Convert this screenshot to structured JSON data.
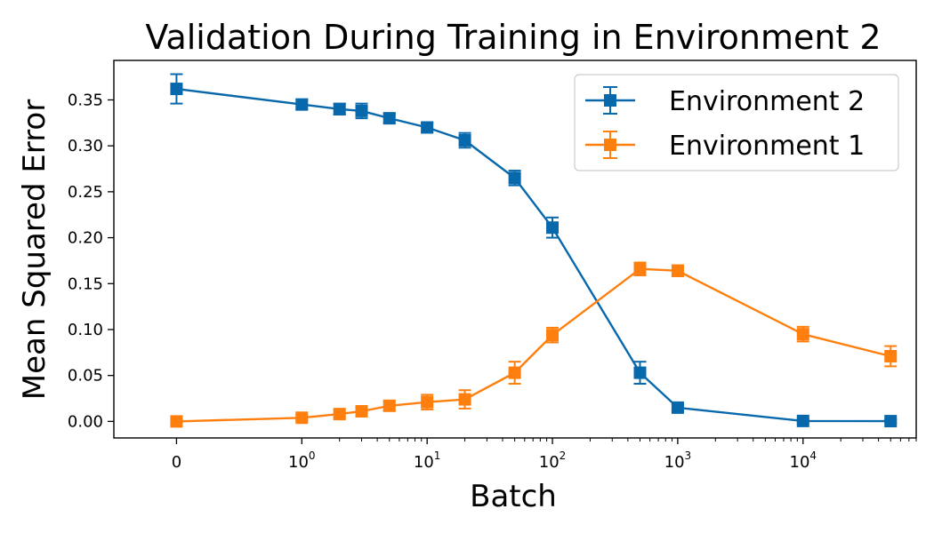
{
  "chart_data": {
    "type": "line",
    "title": "Validation During Training in Environment 2",
    "xlabel": "Batch",
    "ylabel": "Mean Squared Error",
    "xscale": "symlog",
    "xlim": [
      -0.5,
      80000
    ],
    "ylim": [
      -0.018,
      0.393
    ],
    "x": [
      0,
      1,
      2,
      3,
      5,
      10,
      20,
      50,
      100,
      500,
      1000,
      10000,
      50000
    ],
    "x_tick_labels": [
      {
        "value": 0,
        "base": "0",
        "exp": ""
      },
      {
        "value": 1,
        "base": "10",
        "exp": "0"
      },
      {
        "value": 10,
        "base": "10",
        "exp": "1"
      },
      {
        "value": 100,
        "base": "10",
        "exp": "2"
      },
      {
        "value": 1000,
        "base": "10",
        "exp": "3"
      },
      {
        "value": 10000,
        "base": "10",
        "exp": "4"
      }
    ],
    "y_ticks": [
      0.0,
      0.05,
      0.1,
      0.15,
      0.2,
      0.25,
      0.3,
      0.35
    ],
    "y_tick_labels": [
      "0.00",
      "0.05",
      "0.10",
      "0.15",
      "0.20",
      "0.25",
      "0.30",
      "0.35"
    ],
    "legend_position": "upper-right",
    "grid": false,
    "series": [
      {
        "name": "Environment 2",
        "color": "#0868ac",
        "marker": "square",
        "values": [
          0.362,
          0.345,
          0.34,
          0.338,
          0.33,
          0.32,
          0.306,
          0.265,
          0.211,
          0.053,
          0.015,
          0.0005,
          0.0003
        ],
        "errors": [
          0.016,
          0.005,
          0.006,
          0.008,
          0.005,
          0.005,
          0.008,
          0.008,
          0.011,
          0.012,
          0.004,
          0.002,
          0.002
        ]
      },
      {
        "name": "Environment 1",
        "color": "#ff7f0e",
        "marker": "square",
        "values": [
          0.0,
          0.004,
          0.008,
          0.011,
          0.017,
          0.021,
          0.024,
          0.053,
          0.094,
          0.166,
          0.164,
          0.095,
          0.071
        ],
        "errors": [
          0.002,
          0.003,
          0.004,
          0.005,
          0.005,
          0.008,
          0.01,
          0.012,
          0.008,
          0.007,
          0.006,
          0.008,
          0.011
        ]
      }
    ]
  }
}
